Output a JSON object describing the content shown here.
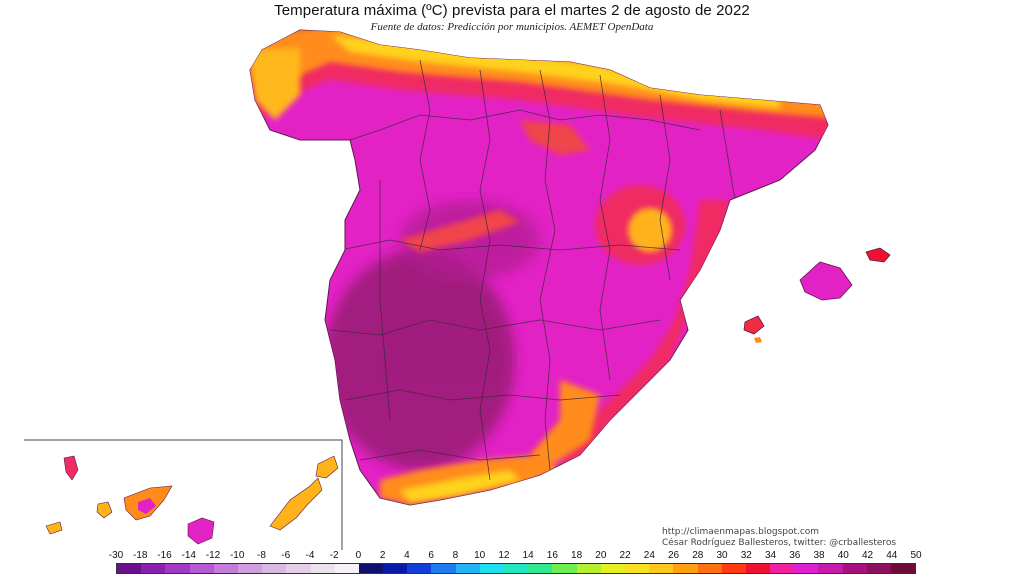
{
  "title": "Temperatura máxima (ºC) prevista para el martes 2 de agosto de 2022",
  "subtitle": "Fuente de datos: Predicción por municipios. AEMET OpenData",
  "credits": {
    "blog": "http://climaenmapas.blogspot.com",
    "author": "César Rodríguez Ballesteros, twitter: @crballesteros"
  },
  "legend": {
    "labels": [
      "-30",
      "-18",
      "-16",
      "-14",
      "-12",
      "-10",
      "-8",
      "-6",
      "-4",
      "-2",
      "0",
      "2",
      "4",
      "6",
      "8",
      "10",
      "12",
      "14",
      "16",
      "18",
      "20",
      "22",
      "24",
      "26",
      "28",
      "30",
      "32",
      "34",
      "36",
      "38",
      "40",
      "42",
      "44",
      "50"
    ],
    "colors": [
      "#6a0f8c",
      "#8a1fb0",
      "#a23bc4",
      "#b55ad0",
      "#c47cd8",
      "#d09ddf",
      "#dbb8e3",
      "#e4cfe6",
      "#ece2ee",
      "#f6f2f7",
      "#10106e",
      "#0a1aa8",
      "#1040d8",
      "#1f7bf0",
      "#22b4f5",
      "#1fe0f0",
      "#22e6c0",
      "#30e890",
      "#70ee50",
      "#b4f030",
      "#e6f020",
      "#f8e020",
      "#ffc81a",
      "#ffa010",
      "#ff7010",
      "#ff3a10",
      "#f01030",
      "#f020a0",
      "#e020d0",
      "#c81aa8",
      "#a81080",
      "#8c1060",
      "#6e0c38"
    ]
  },
  "colors": {
    "deep_magenta": "#9c1a78",
    "magenta": "#e620c8",
    "pink_red": "#f02c64",
    "orange": "#ff8c1a",
    "yellow": "#ffd21a",
    "borders": "#3a2a3a"
  }
}
